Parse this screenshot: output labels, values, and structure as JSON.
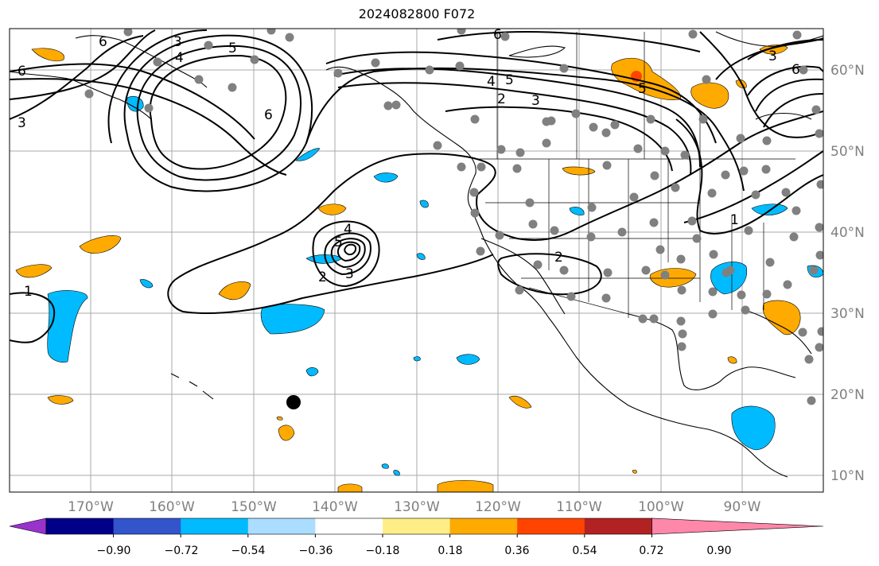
{
  "title": "2024082800 F072",
  "map": {
    "lat_labels": [
      "60°N",
      "50°N",
      "40°N",
      "30°N",
      "20°N",
      "10°N"
    ],
    "lon_labels": [
      "170°W",
      "160°W",
      "150°W",
      "140°W",
      "130°W",
      "120°W",
      "110°W",
      "100°W",
      "90°W"
    ],
    "contour_labels": [
      "6",
      "5",
      "4",
      "3",
      "6",
      "3",
      "5",
      "6",
      "4",
      "5",
      "2",
      "3",
      "6",
      "3",
      "6",
      "1",
      "4",
      "5",
      "2",
      "3",
      "2",
      "1"
    ]
  },
  "colorbar": {
    "colors": [
      "#9933cc",
      "#000088",
      "#3355cc",
      "#00bbff",
      "#aaddff",
      "#ffffff",
      "#ffee88",
      "#ffaa00",
      "#ff4400",
      "#b22222",
      "#ff88aa"
    ],
    "tick_labels": [
      "−0.90",
      "−0.72",
      "−0.54",
      "−0.36",
      "−0.18",
      "0.18",
      "0.36",
      "0.54",
      "0.72",
      "0.90"
    ]
  }
}
